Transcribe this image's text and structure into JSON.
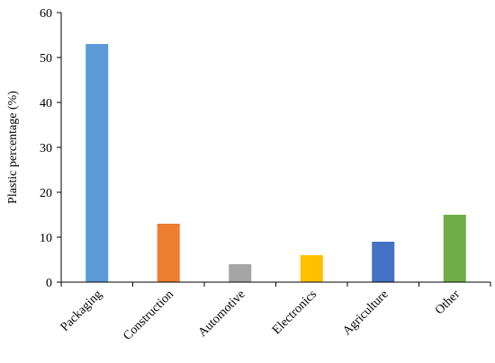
{
  "chart_data": {
    "type": "bar",
    "categories": [
      "Packaging",
      "Construction",
      "Automotive",
      "Electronics",
      "Agriculture",
      "Other"
    ],
    "values": [
      53,
      13,
      4,
      6,
      9,
      15
    ],
    "colors": [
      "#5b9bd5",
      "#ed7d31",
      "#a5a5a5",
      "#ffc000",
      "#4472c4",
      "#70ad47"
    ],
    "title": "",
    "xlabel": "",
    "ylabel": "Plastic percentage (%)",
    "ylim": [
      0,
      60
    ],
    "yticks": [
      0,
      10,
      20,
      30,
      40,
      50,
      60
    ],
    "grid": false,
    "legend": "none"
  }
}
